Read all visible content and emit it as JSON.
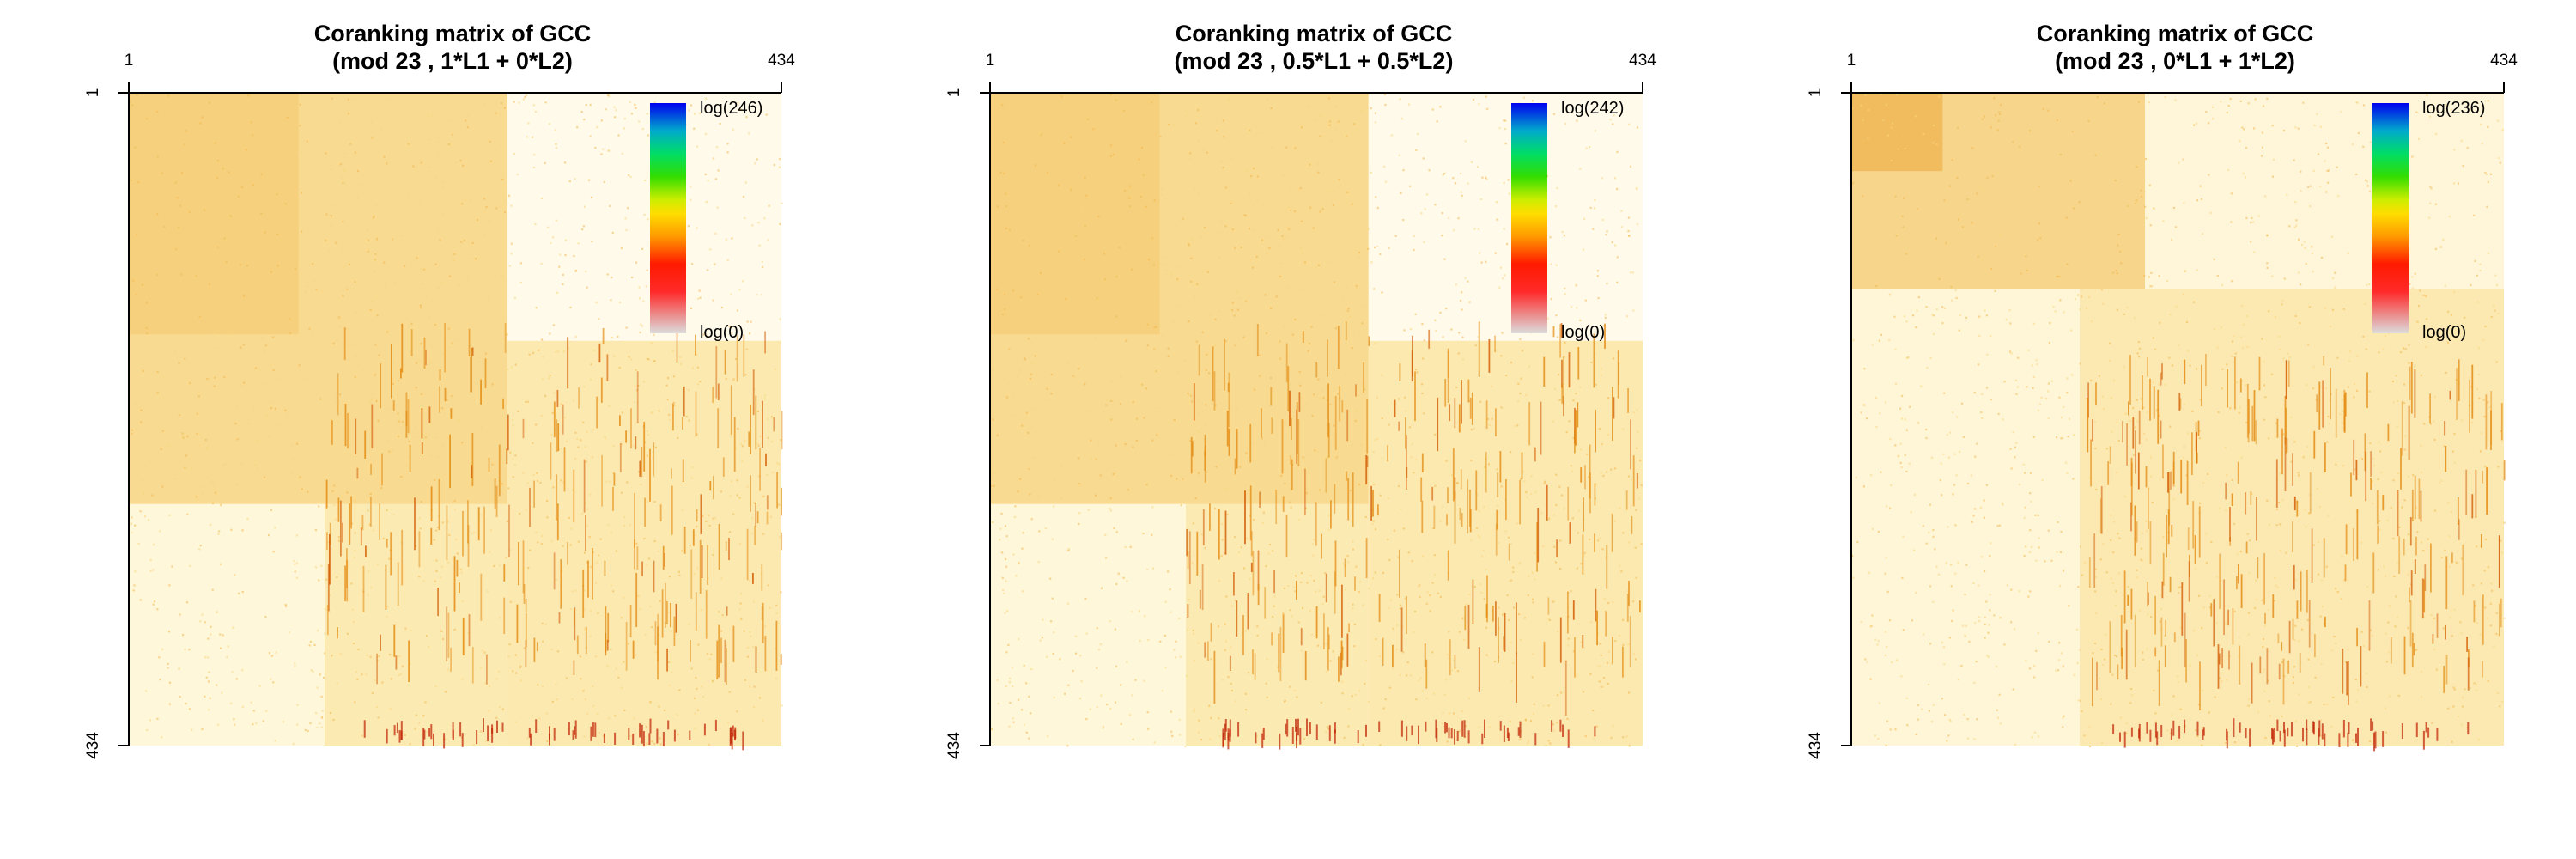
{
  "chart_data": [
    {
      "type": "heatmap",
      "title_line1": "Coranking matrix of GCC",
      "title_line2": "(mod 23 , 1*L1 + 0*L2)",
      "x_ticks": [
        "1",
        "434"
      ],
      "y_ticks": [
        "1",
        "434"
      ],
      "xlim": [
        1,
        434
      ],
      "ylim": [
        1,
        434
      ],
      "legend": {
        "max_label": "log(246)",
        "min_label": "log(0)",
        "max_value": 246,
        "min_value": 0,
        "placement": "top-right"
      },
      "grid": false
    },
    {
      "type": "heatmap",
      "title_line1": "Coranking matrix of GCC",
      "title_line2": "(mod 23 , 0.5*L1 + 0.5*L2)",
      "x_ticks": [
        "1",
        "434"
      ],
      "y_ticks": [
        "1",
        "434"
      ],
      "xlim": [
        1,
        434
      ],
      "ylim": [
        1,
        434
      ],
      "legend": {
        "max_label": "log(242)",
        "min_label": "log(0)",
        "max_value": 242,
        "min_value": 0,
        "placement": "top-right"
      },
      "grid": false
    },
    {
      "type": "heatmap",
      "title_line1": "Coranking matrix of GCC",
      "title_line2": "(mod 23 , 0*L1 + 1*L2)",
      "x_ticks": [
        "1",
        "434"
      ],
      "y_ticks": [
        "1",
        "434"
      ],
      "xlim": [
        1,
        434
      ],
      "ylim": [
        1,
        434
      ],
      "legend": {
        "max_label": "log(236)",
        "min_label": "log(0)",
        "max_value": 236,
        "min_value": 0,
        "placement": "top-right"
      },
      "grid": false
    }
  ],
  "colors": {
    "heat_low": "#fffce8",
    "heat_mid": "#f7c85a",
    "heat_high": "#d96a00",
    "heat_peak": "#c02000",
    "colorbar": [
      "#d9d9d9",
      "#ff1a1a",
      "#ff9900",
      "#ffff00",
      "#99e600",
      "#00e600",
      "#00cc99",
      "#0040ff",
      "#0000e6"
    ]
  }
}
